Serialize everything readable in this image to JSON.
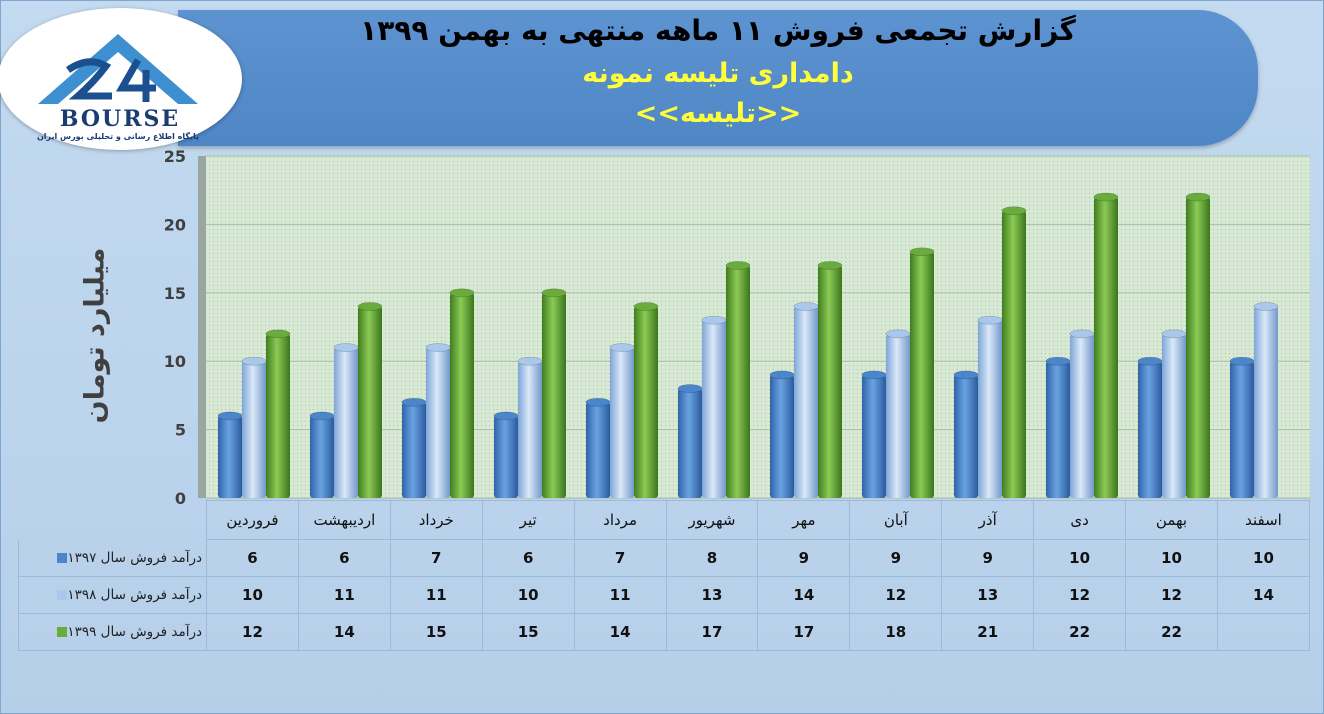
{
  "header": {
    "title": "گزارش تجمعی فروش ۱۱ ماهه منتهی به بهمن ۱۳۹۹",
    "subtitle": "دامداری تلیسه نمونه",
    "company_tag": "<<تلیسه>>"
  },
  "logo": {
    "word": "BOURSE",
    "tagline": "پایگاه اطلاع رسانی و تحلیلی بورس ایران"
  },
  "chart_data": {
    "type": "bar",
    "ylabel": "میلیارد تومان",
    "ylim": [
      0,
      25
    ],
    "yticks": [
      0,
      5,
      10,
      15,
      20,
      25
    ],
    "grid": true,
    "categories": [
      "فروردین",
      "اردیبهشت",
      "خرداد",
      "تیر",
      "مرداد",
      "شهریور",
      "مهر",
      "آبان",
      "آذر",
      "دی",
      "بهمن",
      "اسفند"
    ],
    "series": [
      {
        "name": "درآمد فروش سال ۱۳۹۷",
        "color": "#4a86cc",
        "values": [
          6,
          6,
          7,
          6,
          7,
          8,
          9,
          9,
          9,
          10,
          10,
          10
        ]
      },
      {
        "name": "درآمد فروش سال ۱۳۹۸",
        "color": "#a9c8ec",
        "values": [
          10,
          11,
          11,
          10,
          11,
          13,
          14,
          12,
          13,
          12,
          12,
          14
        ]
      },
      {
        "name": "درآمد فروش سال ۱۳۹۹",
        "color": "#6aab3e",
        "values": [
          12,
          14,
          15,
          15,
          14,
          17,
          17,
          18,
          21,
          22,
          22,
          null
        ]
      }
    ]
  }
}
